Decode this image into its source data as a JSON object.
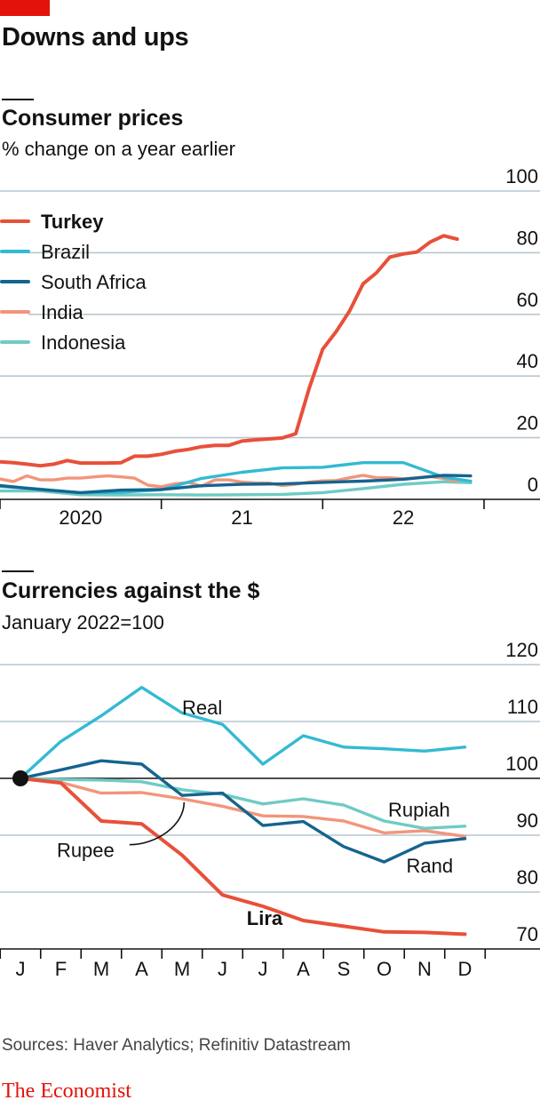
{
  "header": {
    "title": "Downs and ups"
  },
  "footer": {
    "source": "Sources: Haver Analytics; Refinitiv Datastream",
    "brand": "The Economist"
  },
  "colors": {
    "brand_red": "#e3120b",
    "turkey": "#e8503a",
    "brazil": "#33bad2",
    "south_africa": "#15648f",
    "india": "#f2957b",
    "indonesia": "#6fcbc3",
    "grid": "#b7c6cf"
  },
  "chart_data": [
    {
      "type": "line",
      "title": "Consumer prices",
      "subtitle": "% change on a year earlier",
      "ylim": [
        0,
        100
      ],
      "yticks": [
        0,
        20,
        40,
        60,
        80,
        100
      ],
      "xticks": [
        {
          "label": "2020",
          "at": 2020.5
        },
        {
          "label": "21",
          "at": 2021.5
        },
        {
          "label": "22",
          "at": 2022.5
        }
      ],
      "xticks_minor": [
        2020,
        2021,
        2022,
        2023
      ],
      "xlim": [
        2020,
        2023
      ],
      "grid": true,
      "legend_position": "top-left",
      "series": [
        {
          "name": "Turkey",
          "color": "#e8503a",
          "x": [
            2019.875,
            2020,
            2020.0833,
            2020.1667,
            2020.25,
            2020.3333,
            2020.4167,
            2020.5,
            2020.5833,
            2020.6667,
            2020.75,
            2020.8333,
            2020.9167,
            2021,
            2021.0833,
            2021.1667,
            2021.25,
            2021.3333,
            2021.4167,
            2021.5,
            2021.5833,
            2021.6667,
            2021.75,
            2021.8333,
            2021.9167,
            2022,
            2022.0833,
            2022.1667,
            2022.25,
            2022.3333,
            2022.4167,
            2022.5,
            2022.5833,
            2022.6667,
            2022.75,
            2022.8333
          ],
          "values": [
            11.8,
            12.2,
            11.9,
            11.4,
            10.9,
            11.4,
            12.6,
            11.8,
            11.8,
            11.8,
            11.9,
            14.0,
            14.0,
            14.6,
            15.6,
            16.2,
            17.1,
            17.5,
            17.5,
            18.9,
            19.3,
            19.6,
            19.9,
            21.3,
            36.1,
            48.7,
            54.4,
            61.1,
            69.9,
            73.5,
            78.6,
            79.6,
            80.2,
            83.5,
            85.5,
            84.4
          ]
        },
        {
          "name": "Brazil",
          "color": "#33bad2",
          "x": [
            2019.875,
            2020,
            2020.25,
            2020.5,
            2020.75,
            2021,
            2021.25,
            2021.5,
            2021.75,
            2022,
            2022.25,
            2022.5,
            2022.75,
            2022.9167
          ],
          "values": [
            4.3,
            4.2,
            3.3,
            2.1,
            2.3,
            3.1,
            6.8,
            8.8,
            10.2,
            10.4,
            11.9,
            11.9,
            7.2,
            5.9
          ]
        },
        {
          "name": "South Africa",
          "color": "#15648f",
          "x": [
            2019.875,
            2020,
            2020.25,
            2020.5,
            2020.75,
            2021,
            2021.25,
            2021.5,
            2021.75,
            2022,
            2022.25,
            2022.5,
            2022.75,
            2022.9167
          ],
          "values": [
            4.0,
            4.5,
            3.2,
            2.2,
            3.0,
            3.2,
            4.4,
            4.9,
            5.0,
            5.5,
            5.9,
            6.5,
            7.8,
            7.6
          ]
        },
        {
          "name": "India",
          "color": "#f2957b",
          "x": [
            2019.875,
            2020,
            2020.0833,
            2020.1667,
            2020.25,
            2020.3333,
            2020.4167,
            2020.5,
            2020.5833,
            2020.6667,
            2020.75,
            2020.8333,
            2020.9167,
            2021,
            2021.0833,
            2021.1667,
            2021.25,
            2021.3333,
            2021.4167,
            2021.5,
            2021.5833,
            2021.6667,
            2021.75,
            2021.8333,
            2021.9167,
            2022,
            2022.0833,
            2022.1667,
            2022.25,
            2022.3333,
            2022.4167,
            2022.5,
            2022.5833,
            2022.6667,
            2022.75,
            2022.8333
          ],
          "values": [
            7.4,
            6.6,
            5.8,
            7.6,
            6.3,
            6.3,
            6.9,
            6.9,
            7.3,
            7.6,
            7.3,
            6.9,
            4.6,
            4.1,
            5.0,
            5.5,
            4.3,
            6.3,
            6.3,
            5.6,
            5.3,
            5.3,
            4.5,
            4.9,
            5.6,
            6.0,
            6.1,
            7.0,
            7.8,
            7.0,
            7.0,
            6.7,
            7.0,
            7.4,
            6.8,
            5.9
          ]
        },
        {
          "name": "Indonesia",
          "color": "#6fcbc3",
          "x": [
            2019.875,
            2020,
            2020.25,
            2020.5,
            2020.75,
            2021,
            2021.25,
            2021.5,
            2021.75,
            2022,
            2022.25,
            2022.5,
            2022.75,
            2022.9167
          ],
          "values": [
            3.0,
            2.7,
            2.7,
            1.5,
            1.4,
            1.5,
            1.4,
            1.5,
            1.6,
            2.2,
            3.5,
            4.9,
            5.7,
            5.4
          ]
        }
      ]
    },
    {
      "type": "line",
      "title": "Currencies against the $",
      "subtitle": "January 2022=100",
      "ylim": [
        70,
        120
      ],
      "yticks": [
        70,
        80,
        90,
        100,
        110,
        120
      ],
      "xlim": [
        2022.0,
        2022.0833
      ],
      "categories": [
        "J",
        "F",
        "M",
        "A",
        "M",
        "J",
        "J",
        "A",
        "S",
        "O",
        "N",
        "D"
      ],
      "grid": true,
      "baseline": 100,
      "series": [
        {
          "name": "Real",
          "color": "#33bad2",
          "values": [
            100.0,
            106.5,
            111.0,
            116.0,
            111.5,
            109.5,
            102.5,
            107.5,
            105.5,
            105.2,
            104.8,
            105.5
          ],
          "label_at": [
            4.0,
            112.5
          ]
        },
        {
          "name": "Rupiah",
          "color": "#6fcbc3",
          "values": [
            100.0,
            99.8,
            99.7,
            99.4,
            98.0,
            97.2,
            95.5,
            96.4,
            95.3,
            92.5,
            91.2,
            91.6
          ],
          "label_at": [
            9.1,
            94.5
          ]
        },
        {
          "name": "Rand",
          "color": "#15648f",
          "values": [
            100.0,
            101.5,
            103.1,
            102.5,
            97.0,
            97.4,
            91.7,
            92.4,
            88.0,
            85.3,
            88.6,
            89.4
          ],
          "label_at": [
            9.55,
            84.7
          ]
        },
        {
          "name": "Rupee",
          "color": "#f2957b",
          "values": [
            100.0,
            99.3,
            97.4,
            97.5,
            96.4,
            95.1,
            93.4,
            93.3,
            92.5,
            90.4,
            90.8,
            89.8
          ],
          "label_at": [
            0.9,
            87.4
          ]
        },
        {
          "name": "Lira",
          "color": "#e8503a",
          "values": [
            100.0,
            99.2,
            92.5,
            92.0,
            86.5,
            79.5,
            77.5,
            75.0,
            74.0,
            73.0,
            72.9,
            72.6
          ],
          "label_at": [
            5.6,
            75.5
          ]
        }
      ]
    }
  ]
}
